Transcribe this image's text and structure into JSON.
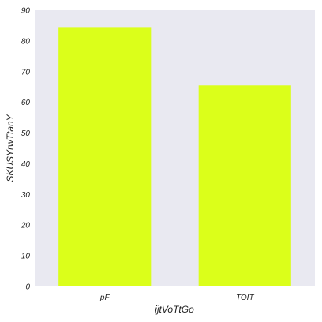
{
  "chart_data": {
    "type": "bar",
    "categories": [
      "pF",
      "TOIT"
    ],
    "values": [
      84.5,
      65.5
    ],
    "xlabel": "ijtVoTtGo",
    "ylabel": "SKUSYrwTtanY",
    "ylim": [
      0,
      90
    ],
    "yticks": [
      "0",
      "10",
      "20",
      "30",
      "40",
      "50",
      "60",
      "70",
      "80",
      "90"
    ],
    "grid": false,
    "colors": {
      "bar": "#dbff1a",
      "plot_background": "#e9e9f1"
    }
  }
}
